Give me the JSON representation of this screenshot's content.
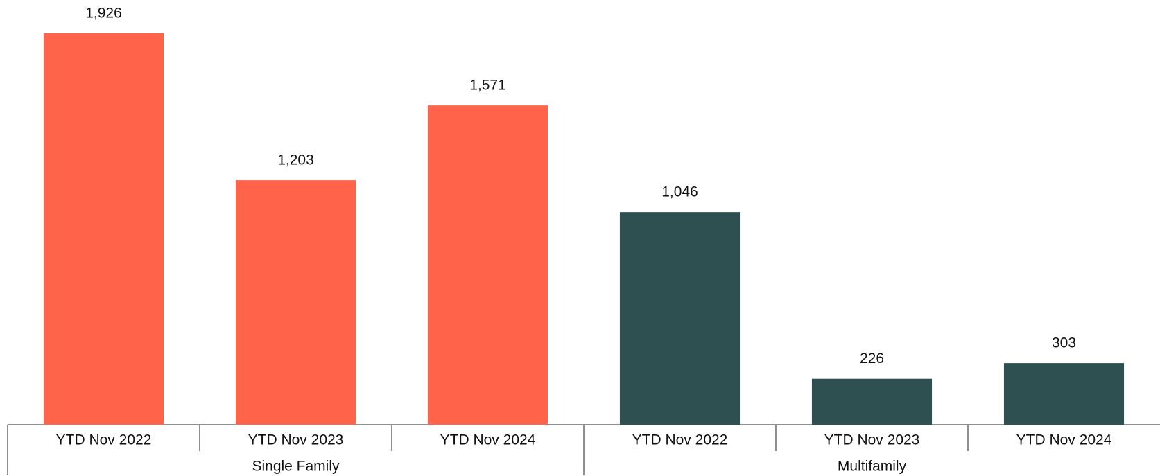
{
  "chart_data": {
    "type": "bar",
    "groups": [
      {
        "name": "Single Family",
        "color": "#ff644a",
        "categories": [
          "YTD Nov 2022",
          "YTD Nov 2023",
          "YTD Nov 2024"
        ],
        "values": [
          1926,
          1203,
          1571
        ],
        "value_labels": [
          "1,926",
          "1,203",
          "1,571"
        ]
      },
      {
        "name": "Multifamily",
        "color": "#2f5050",
        "categories": [
          "YTD Nov 2022",
          "YTD Nov 2023",
          "YTD Nov 2024"
        ],
        "values": [
          1046,
          226,
          303
        ],
        "value_labels": [
          "1,046",
          "226",
          "303"
        ]
      }
    ]
  }
}
